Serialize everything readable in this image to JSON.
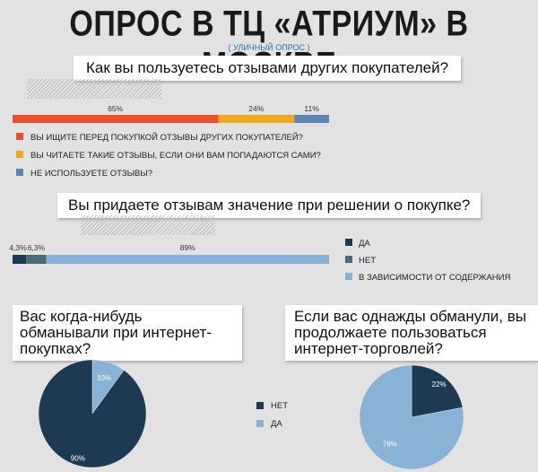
{
  "header": {
    "title": "ОПРОС В ТЦ «АТРИУМ» В МОСКВЕ",
    "subtitle": "( УЛИЧНЫЙ ОПРОС )"
  },
  "colors": {
    "red": "#e8502e",
    "yellow": "#f0a81d",
    "blue_mid": "#5b86b6",
    "navy": "#1e3a52",
    "slate": "#4a6b78",
    "light_blue": "#88b2d6"
  },
  "chart_data": [
    {
      "type": "bar",
      "orientation": "stacked-horizontal",
      "title": "Как вы пользуетесь отзывами других покупателей?",
      "categories": [
        "ВЫ ИЩИТЕ ПЕРЕД ПОКУПКОЙ ОТЗЫВЫ ДРУГИХ ПОКУПАТЕЛЕЙ?",
        "ВЫ ЧИТАЕТЕ ТАКИЕ ОТЗЫВЫ, ЕСЛИ ОНИ ВАМ ПОПАДАЮТСЯ САМИ?",
        "НЕ ИСПОЛЬЗУЕТЕ ОТЗЫВЫ?"
      ],
      "values": [
        65,
        24,
        11
      ],
      "labels": [
        "65%",
        "24%",
        "11%"
      ],
      "colors": [
        "#e8502e",
        "#f0a81d",
        "#5b86b6"
      ]
    },
    {
      "type": "bar",
      "orientation": "stacked-horizontal",
      "title": "Вы придаете отзывам значение при решении о покупке?",
      "categories": [
        "ДА",
        "НЕТ",
        "В ЗАВИСИМОСТИ ОТ СОДЕРЖАНИЯ"
      ],
      "values": [
        4.3,
        6.3,
        89
      ],
      "labels": [
        "4,3%",
        "6,3%",
        "89%"
      ],
      "colors": [
        "#1e3a52",
        "#4a6b78",
        "#88b2d6"
      ]
    },
    {
      "type": "pie",
      "title": "Вас когда-нибудь обманывали при интернет-покупках?",
      "categories": [
        "НЕТ",
        "ДА"
      ],
      "values": [
        90,
        10
      ],
      "labels": [
        "90%",
        "10%"
      ],
      "colors": [
        "#1e3a52",
        "#88b2d6"
      ]
    },
    {
      "type": "pie",
      "title": "Если вас однажды обманули, вы продолжаете пользоваться интернет-торговлей?",
      "categories": [
        "НЕТ",
        "ДА"
      ],
      "values": [
        22,
        78
      ],
      "labels": [
        "22%",
        "78%"
      ],
      "colors": [
        "#1e3a52",
        "#88b2d6"
      ]
    }
  ],
  "pie_legend": [
    {
      "label": "НЕТ",
      "color": "#1e3a52"
    },
    {
      "label": "ДА",
      "color": "#88b2d6"
    }
  ]
}
